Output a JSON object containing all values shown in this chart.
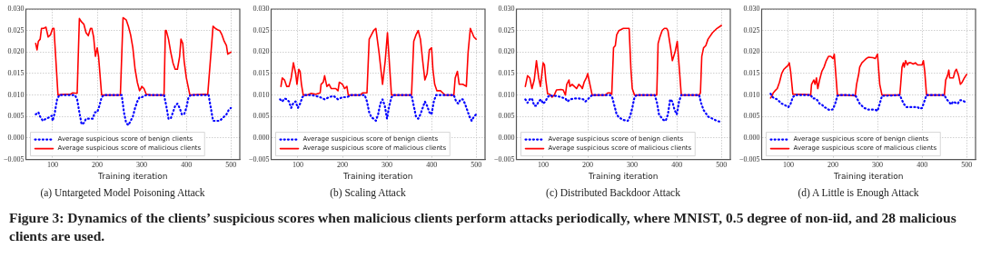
{
  "chart_data": [
    {
      "type": "line",
      "title": "(a) Untargeted Model Poisoning Attack",
      "xlabel": "Training iteration",
      "xlim": [
        40,
        520
      ],
      "xticks": [
        100,
        200,
        300,
        400,
        500
      ],
      "ylim": [
        -0.005,
        0.03
      ],
      "yticks": [
        {
          "value": -0.005,
          "label": "−0.005"
        },
        {
          "value": 0,
          "label": "0.000"
        },
        {
          "value": 0.005,
          "label": "0.005"
        },
        {
          "value": 0.01,
          "label": "0.010"
        },
        {
          "value": 0.015,
          "label": "0.015"
        },
        {
          "value": 0.02,
          "label": "0.020"
        },
        {
          "value": 0.025,
          "label": "0.025"
        },
        {
          "value": 0.03,
          "label": "0.030"
        }
      ],
      "grid": true,
      "legend": "bottom left",
      "marker": "none",
      "annotations": [
        "Figure 3: Dynamics of the clients’ suspicious scores when malicious clients perform attacks periodically, where MNIST, 0.5 degree of non-iid, and 28 malicious clients are used."
      ],
      "series": [
        {
          "name": "Average suspicious score of benign clients",
          "color": "#0000ff",
          "line_style": "dotted",
          "x": [
            62,
            68,
            72,
            78,
            85,
            92,
            98,
            100,
            105,
            110,
            115,
            150,
            155,
            160,
            165,
            170,
            175,
            180,
            185,
            190,
            195,
            200,
            205,
            210,
            215,
            255,
            260,
            265,
            270,
            275,
            280,
            285,
            290,
            295,
            300,
            310,
            350,
            355,
            360,
            365,
            370,
            375,
            380,
            385,
            390,
            395,
            400,
            405,
            410,
            450,
            455,
            460,
            465,
            470,
            475,
            480,
            485,
            490,
            495,
            500
          ],
          "values": [
            0.0055,
            0.006,
            0.005,
            0.004,
            0.0045,
            0.0048,
            0.0052,
            0.004,
            0.006,
            0.009,
            0.01,
            0.01,
            0.009,
            0.006,
            0.0032,
            0.0035,
            0.0045,
            0.0045,
            0.0045,
            0.0045,
            0.006,
            0.006,
            0.0075,
            0.0095,
            0.01,
            0.01,
            0.006,
            0.0035,
            0.003,
            0.004,
            0.005,
            0.007,
            0.0085,
            0.0095,
            0.0095,
            0.01,
            0.01,
            0.0075,
            0.0045,
            0.0045,
            0.006,
            0.0075,
            0.008,
            0.007,
            0.0055,
            0.0055,
            0.007,
            0.0095,
            0.01,
            0.01,
            0.007,
            0.004,
            0.004,
            0.004,
            0.004,
            0.0045,
            0.005,
            0.0055,
            0.0065,
            0.007
          ]
        },
        {
          "name": "Average suspicious score of malicious clients",
          "color": "#ff0000",
          "line_style": "solid",
          "x": [
            62,
            65,
            68,
            72,
            75,
            80,
            85,
            90,
            95,
            100,
            103,
            112,
            120,
            130,
            140,
            145,
            155,
            160,
            165,
            170,
            175,
            180,
            185,
            188,
            192,
            196,
            200,
            203,
            210,
            252,
            258,
            265,
            270,
            275,
            280,
            285,
            290,
            295,
            298,
            300,
            305,
            310,
            320,
            350,
            353,
            355,
            360,
            365,
            370,
            375,
            380,
            385,
            388,
            392,
            395,
            400,
            408,
            440,
            448,
            460,
            465,
            470,
            475,
            480,
            485,
            490,
            493,
            500
          ],
          "values": [
            0.022,
            0.0205,
            0.0225,
            0.023,
            0.0255,
            0.0255,
            0.0258,
            0.0235,
            0.024,
            0.0255,
            0.0255,
            0.01,
            0.0101,
            0.0102,
            0.0102,
            0.0105,
            0.0104,
            0.0278,
            0.027,
            0.0265,
            0.0245,
            0.0238,
            0.0255,
            0.0255,
            0.0235,
            0.019,
            0.021,
            0.019,
            0.01,
            0.01,
            0.028,
            0.0275,
            0.026,
            0.024,
            0.021,
            0.016,
            0.013,
            0.011,
            0.0115,
            0.012,
            0.0115,
            0.0102,
            0.01,
            0.01,
            0.025,
            0.025,
            0.023,
            0.02,
            0.0175,
            0.016,
            0.016,
            0.019,
            0.023,
            0.022,
            0.018,
            0.014,
            0.01,
            0.0102,
            0.0101,
            0.026,
            0.0255,
            0.0252,
            0.025,
            0.024,
            0.0225,
            0.0215,
            0.0195,
            0.02
          ]
        }
      ]
    },
    {
      "type": "line",
      "title": "(b) Scaling Attack",
      "xlabel": "Training iteration",
      "xlim": [
        40,
        520
      ],
      "xticks": [
        100,
        200,
        300,
        400,
        500
      ],
      "ylim": [
        -0.005,
        0.03
      ],
      "yticks": [
        {
          "value": -0.005,
          "label": "−0.005"
        },
        {
          "value": 0,
          "label": "0.000"
        },
        {
          "value": 0.005,
          "label": "0.005"
        },
        {
          "value": 0.01,
          "label": "0.010"
        },
        {
          "value": 0.015,
          "label": "0.015"
        },
        {
          "value": 0.02,
          "label": "0.020"
        },
        {
          "value": 0.025,
          "label": "0.025"
        },
        {
          "value": 0.03,
          "label": "0.030"
        }
      ],
      "grid": true,
      "legend": "bottom left",
      "marker": "none",
      "series": [
        {
          "name": "Average suspicious score of benign clients",
          "color": "#0000ff",
          "line_style": "dotted",
          "x": [
            60,
            65,
            70,
            75,
            80,
            85,
            90,
            95,
            100,
            105,
            110,
            115,
            130,
            140,
            150,
            160,
            170,
            180,
            190,
            200,
            210,
            220,
            250,
            255,
            260,
            265,
            270,
            275,
            280,
            285,
            290,
            295,
            300,
            305,
            310,
            315,
            355,
            360,
            365,
            370,
            375,
            380,
            385,
            390,
            395,
            400,
            405,
            410,
            450,
            455,
            460,
            465,
            470,
            475,
            480,
            485,
            490,
            495,
            500
          ],
          "values": [
            0.009,
            0.0085,
            0.0092,
            0.009,
            0.0085,
            0.007,
            0.0082,
            0.0085,
            0.007,
            0.008,
            0.0095,
            0.01,
            0.01,
            0.0098,
            0.0095,
            0.009,
            0.0095,
            0.0098,
            0.009,
            0.0095,
            0.0095,
            0.01,
            0.01,
            0.0085,
            0.006,
            0.0048,
            0.0045,
            0.004,
            0.0055,
            0.008,
            0.009,
            0.0075,
            0.0045,
            0.0075,
            0.0095,
            0.01,
            0.01,
            0.0075,
            0.005,
            0.0045,
            0.0055,
            0.007,
            0.0085,
            0.0075,
            0.006,
            0.0055,
            0.0085,
            0.01,
            0.01,
            0.0085,
            0.008,
            0.009,
            0.009,
            0.008,
            0.0065,
            0.005,
            0.004,
            0.005,
            0.0055
          ]
        },
        {
          "name": "Average suspicious score of malicious clients",
          "color": "#ff0000",
          "line_style": "solid",
          "x": [
            62,
            65,
            70,
            75,
            80,
            85,
            90,
            95,
            98,
            102,
            105,
            108,
            112,
            120,
            130,
            140,
            150,
            152,
            157,
            160,
            165,
            170,
            175,
            185,
            190,
            193,
            200,
            205,
            210,
            213,
            240,
            245,
            255,
            260,
            265,
            270,
            275,
            282,
            290,
            296,
            301,
            305,
            310,
            355,
            360,
            365,
            370,
            375,
            380,
            385,
            390,
            395,
            400,
            403,
            407,
            412,
            420,
            425,
            430,
            450,
            453,
            458,
            462,
            470,
            478,
            482,
            487,
            495,
            500
          ],
          "values": [
            0.012,
            0.014,
            0.0135,
            0.012,
            0.012,
            0.014,
            0.0175,
            0.015,
            0.0125,
            0.016,
            0.0155,
            0.0125,
            0.01,
            0.01,
            0.0104,
            0.0102,
            0.0105,
            0.0125,
            0.013,
            0.0145,
            0.012,
            0.0125,
            0.0115,
            0.0115,
            0.011,
            0.013,
            0.0125,
            0.0115,
            0.012,
            0.01,
            0.01,
            0.0105,
            0.0105,
            0.023,
            0.024,
            0.025,
            0.0255,
            0.02,
            0.0125,
            0.018,
            0.0245,
            0.018,
            0.01,
            0.01,
            0.0225,
            0.024,
            0.025,
            0.023,
            0.018,
            0.0135,
            0.015,
            0.0205,
            0.021,
            0.016,
            0.0125,
            0.011,
            0.011,
            0.0105,
            0.01,
            0.01,
            0.014,
            0.0155,
            0.0125,
            0.0125,
            0.012,
            0.02,
            0.0255,
            0.0235,
            0.023
          ]
        }
      ]
    },
    {
      "type": "line",
      "title": "(c) Distributed Backdoor Attack",
      "xlabel": "Training iteration",
      "xlim": [
        40,
        520
      ],
      "xticks": [
        100,
        200,
        300,
        400,
        500
      ],
      "ylim": [
        -0.005,
        0.03
      ],
      "yticks": [
        {
          "value": -0.005,
          "label": "−0.005"
        },
        {
          "value": 0,
          "label": "0.000"
        },
        {
          "value": 0.005,
          "label": "0.005"
        },
        {
          "value": 0.01,
          "label": "0.010"
        },
        {
          "value": 0.015,
          "label": "0.015"
        },
        {
          "value": 0.02,
          "label": "0.020"
        },
        {
          "value": 0.025,
          "label": "0.025"
        },
        {
          "value": 0.03,
          "label": "0.030"
        }
      ],
      "grid": true,
      "legend": "bottom left",
      "marker": "none",
      "series": [
        {
          "name": "Average suspicious score of benign clients",
          "color": "#0000ff",
          "line_style": "dotted",
          "x": [
            60,
            65,
            70,
            75,
            80,
            85,
            90,
            95,
            100,
            105,
            110,
            115,
            120,
            130,
            140,
            150,
            155,
            160,
            170,
            180,
            190,
            195,
            200,
            205,
            210,
            250,
            255,
            260,
            265,
            270,
            280,
            290,
            295,
            300,
            305,
            310,
            350,
            355,
            360,
            365,
            370,
            375,
            380,
            385,
            390,
            395,
            400,
            405,
            410,
            450,
            455,
            460,
            465,
            470,
            480,
            490,
            500
          ],
          "values": [
            0.009,
            0.0082,
            0.009,
            0.0092,
            0.0075,
            0.0075,
            0.0085,
            0.009,
            0.008,
            0.0085,
            0.0095,
            0.01,
            0.0098,
            0.0098,
            0.0095,
            0.0092,
            0.0085,
            0.009,
            0.0092,
            0.0092,
            0.009,
            0.0085,
            0.009,
            0.0095,
            0.01,
            0.01,
            0.0095,
            0.0075,
            0.0055,
            0.0048,
            0.0042,
            0.004,
            0.005,
            0.007,
            0.0095,
            0.01,
            0.01,
            0.0085,
            0.0055,
            0.0048,
            0.0042,
            0.004,
            0.0055,
            0.009,
            0.0085,
            0.0065,
            0.0055,
            0.0085,
            0.01,
            0.01,
            0.008,
            0.0065,
            0.0058,
            0.005,
            0.0045,
            0.004,
            0.0037
          ]
        },
        {
          "name": "Average suspicious score of malicious clients",
          "color": "#ff0000",
          "line_style": "solid",
          "x": [
            60,
            65,
            70,
            75,
            80,
            85,
            90,
            94,
            100,
            103,
            106,
            110,
            115,
            120,
            125,
            130,
            140,
            145,
            150,
            153,
            158,
            160,
            165,
            170,
            175,
            180,
            185,
            188,
            192,
            197,
            200,
            205,
            210,
            220,
            240,
            245,
            250,
            254,
            258,
            262,
            265,
            270,
            280,
            290,
            293,
            297,
            300,
            305,
            350,
            355,
            358,
            362,
            367,
            372,
            377,
            380,
            386,
            390,
            396,
            401,
            405,
            410,
            450,
            453,
            456,
            460,
            465,
            470,
            480,
            490,
            500
          ],
          "values": [
            0.012,
            0.0145,
            0.014,
            0.0115,
            0.0135,
            0.018,
            0.014,
            0.012,
            0.0175,
            0.017,
            0.0135,
            0.0103,
            0.0102,
            0.0095,
            0.01,
            0.0112,
            0.0113,
            0.0112,
            0.01,
            0.0125,
            0.0135,
            0.012,
            0.0125,
            0.012,
            0.0115,
            0.0125,
            0.012,
            0.0115,
            0.013,
            0.014,
            0.015,
            0.0125,
            0.01,
            0.01,
            0.01,
            0.0105,
            0.0105,
            0.0102,
            0.021,
            0.0215,
            0.024,
            0.025,
            0.0255,
            0.0255,
            0.0255,
            0.016,
            0.0115,
            0.01,
            0.01,
            0.01,
            0.022,
            0.0235,
            0.025,
            0.0255,
            0.0255,
            0.025,
            0.021,
            0.018,
            0.02,
            0.0225,
            0.017,
            0.01,
            0.01,
            0.0105,
            0.019,
            0.021,
            0.0215,
            0.023,
            0.0245,
            0.0255,
            0.0262
          ]
        }
      ]
    },
    {
      "type": "line",
      "title": "(d) A Little is Enough Attack",
      "xlabel": "Training iteration",
      "xlim": [
        40,
        520
      ],
      "xticks": [
        100,
        200,
        300,
        400,
        500
      ],
      "ylim": [
        -0.005,
        0.03
      ],
      "yticks": [
        {
          "value": -0.005,
          "label": "−0.005"
        },
        {
          "value": 0,
          "label": "0.000"
        },
        {
          "value": 0.005,
          "label": "0.005"
        },
        {
          "value": 0.01,
          "label": "0.010"
        },
        {
          "value": 0.015,
          "label": "0.015"
        },
        {
          "value": 0.02,
          "label": "0.020"
        },
        {
          "value": 0.025,
          "label": "0.025"
        },
        {
          "value": 0.03,
          "label": "0.030"
        }
      ],
      "grid": true,
      "legend": "bottom left",
      "marker": "none",
      "series": [
        {
          "name": "Average suspicious score of benign clients",
          "color": "#0000ff",
          "line_style": "dotted",
          "x": [
            60,
            65,
            70,
            75,
            80,
            85,
            90,
            95,
            100,
            105,
            110,
            115,
            150,
            155,
            160,
            165,
            170,
            175,
            180,
            185,
            190,
            195,
            200,
            205,
            210,
            215,
            250,
            255,
            260,
            265,
            270,
            275,
            280,
            290,
            295,
            300,
            305,
            310,
            350,
            355,
            360,
            365,
            370,
            380,
            390,
            395,
            400,
            405,
            410,
            450,
            455,
            460,
            465,
            470,
            475,
            480,
            485,
            490,
            495,
            500
          ],
          "values": [
            0.0103,
            0.0095,
            0.0092,
            0.009,
            0.0085,
            0.008,
            0.0078,
            0.0075,
            0.0072,
            0.008,
            0.0095,
            0.01,
            0.01,
            0.0092,
            0.0092,
            0.0088,
            0.008,
            0.0078,
            0.0072,
            0.007,
            0.0066,
            0.0065,
            0.0067,
            0.008,
            0.0098,
            0.01,
            0.01,
            0.009,
            0.008,
            0.0075,
            0.007,
            0.0068,
            0.0066,
            0.0066,
            0.0066,
            0.0063,
            0.008,
            0.0098,
            0.01,
            0.0088,
            0.0078,
            0.0072,
            0.0072,
            0.0072,
            0.0072,
            0.0068,
            0.007,
            0.0085,
            0.01,
            0.01,
            0.009,
            0.0085,
            0.0078,
            0.0085,
            0.0082,
            0.008,
            0.0088,
            0.0088,
            0.0085,
            0.0082
          ]
        },
        {
          "name": "Average suspicious score of malicious clients",
          "color": "#ff0000",
          "line_style": "solid",
          "x": [
            60,
            63,
            66,
            70,
            75,
            80,
            85,
            90,
            95,
            100,
            102,
            105,
            110,
            120,
            140,
            150,
            152,
            157,
            160,
            163,
            166,
            170,
            175,
            180,
            185,
            190,
            195,
            200,
            203,
            210,
            230,
            250,
            253,
            258,
            260,
            265,
            270,
            275,
            280,
            290,
            295,
            300,
            305,
            310,
            350,
            352,
            355,
            358,
            360,
            363,
            367,
            370,
            375,
            380,
            385,
            390,
            395,
            400,
            403,
            406,
            410,
            450,
            453,
            457,
            460,
            462,
            470,
            474,
            477,
            482,
            486,
            490,
            495,
            500
          ],
          "values": [
            0.0093,
            0.0098,
            0.0105,
            0.011,
            0.0115,
            0.013,
            0.015,
            0.016,
            0.0165,
            0.017,
            0.0175,
            0.0155,
            0.0102,
            0.0102,
            0.0101,
            0.01,
            0.0125,
            0.0135,
            0.0125,
            0.014,
            0.0115,
            0.0135,
            0.0155,
            0.0165,
            0.018,
            0.019,
            0.019,
            0.0185,
            0.0195,
            0.01,
            0.01,
            0.0098,
            0.0125,
            0.015,
            0.0165,
            0.0175,
            0.018,
            0.0185,
            0.0188,
            0.0187,
            0.0185,
            0.0195,
            0.0125,
            0.01,
            0.01,
            0.0125,
            0.0165,
            0.0175,
            0.0165,
            0.018,
            0.017,
            0.0175,
            0.0175,
            0.0172,
            0.0175,
            0.017,
            0.017,
            0.017,
            0.018,
            0.0155,
            0.01,
            0.01,
            0.0135,
            0.0145,
            0.0158,
            0.014,
            0.014,
            0.0155,
            0.016,
            0.0145,
            0.0125,
            0.013,
            0.014,
            0.0148
          ]
        }
      ]
    }
  ]
}
